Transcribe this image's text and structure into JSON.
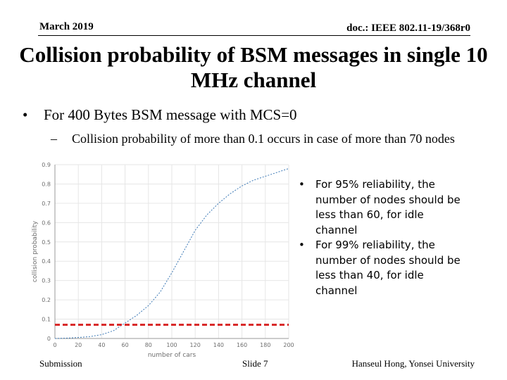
{
  "header": {
    "date": "March 2019",
    "doc": "doc.: IEEE 802.11-19/368r0"
  },
  "title": "Collision probability of BSM messages in single 10 MHz channel",
  "bullets": {
    "main": "For 400 Bytes BSM message with MCS=0",
    "sub": "Collision probability of more than 0.1 occurs in case of more than 70 nodes"
  },
  "notes": [
    "For 95% reliability, the number of nodes should be less than 60, for idle channel",
    "For 99% reliability, the number of nodes should be less than 40, for idle channel"
  ],
  "footer": {
    "left": "Submission",
    "center": "Slide 7",
    "right": "Hanseul Hong, Yonsei University"
  },
  "colors": {
    "line": "#3b78b5",
    "threshold": "#d92a2a",
    "grid": "#e6e6e6"
  },
  "chart_data": {
    "type": "line",
    "xlabel": "number of cars",
    "ylabel": "collision probability",
    "xlim": [
      0,
      200
    ],
    "ylim": [
      0,
      0.9
    ],
    "xticks": [
      0,
      20,
      40,
      60,
      80,
      100,
      120,
      140,
      160,
      180,
      200
    ],
    "yticks": [
      0,
      0.1,
      0.2,
      0.3,
      0.4,
      0.5,
      0.6,
      0.7,
      0.8,
      0.9
    ],
    "grid": true,
    "series": [
      {
        "x": [
          0,
          10,
          20,
          30,
          40,
          50,
          60,
          70,
          80,
          90,
          100,
          110,
          120,
          130,
          140,
          150,
          160,
          170,
          180,
          190,
          200
        ],
        "values": [
          0,
          0.002,
          0.005,
          0.01,
          0.02,
          0.04,
          0.08,
          0.12,
          0.17,
          0.24,
          0.34,
          0.45,
          0.56,
          0.64,
          0.7,
          0.75,
          0.79,
          0.82,
          0.84,
          0.86,
          0.88
        ]
      }
    ],
    "threshold": 0.1
  }
}
